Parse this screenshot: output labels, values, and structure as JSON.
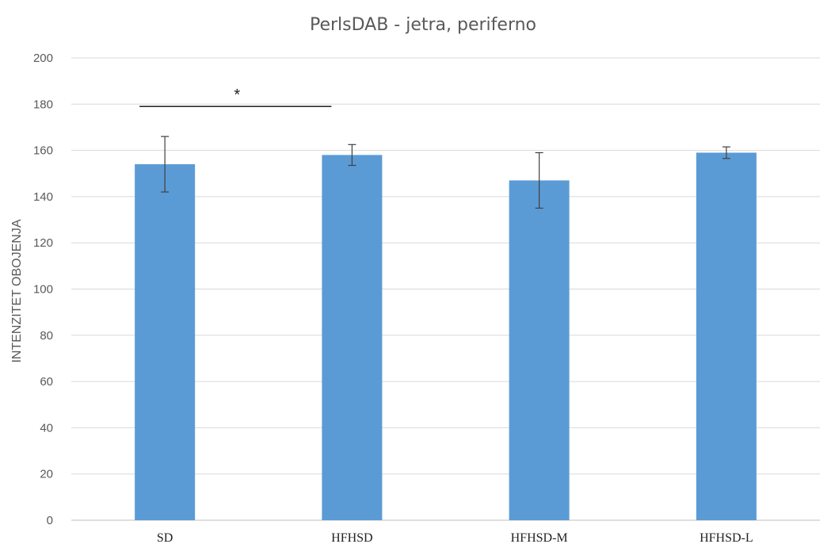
{
  "chart_data": {
    "type": "bar",
    "title": "PerlsDAB - jetra, periferno",
    "ylabel": "INTENZITET OBOJENJA",
    "xlabel": "",
    "categories": [
      "SD",
      "HFHSD",
      "HFHSD-M",
      "HFHSD-L"
    ],
    "values": [
      154,
      158,
      147,
      159
    ],
    "error": [
      12,
      4.5,
      12,
      2.5
    ],
    "ylim": [
      0,
      200
    ],
    "yticks": [
      0,
      20,
      40,
      60,
      80,
      100,
      120,
      140,
      160,
      180,
      200
    ],
    "grid": true,
    "legend": "none",
    "bar_color": "#5b9bd5",
    "significance": [
      {
        "from": "SD",
        "to": "HFHSD",
        "y": 179,
        "label": "*"
      }
    ]
  }
}
